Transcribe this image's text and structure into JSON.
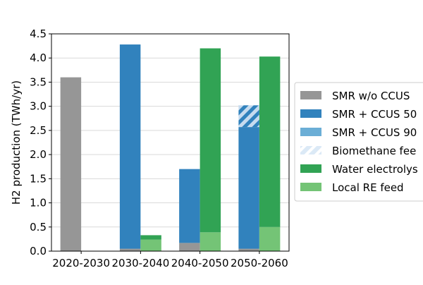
{
  "chart_data": {
    "type": "bar",
    "ylabel": "H2 production (TWh/yr)",
    "ylim": [
      0,
      4.5
    ],
    "yticks": [
      "0.0",
      "0.5",
      "1.0",
      "1.5",
      "2.0",
      "2.5",
      "3.0",
      "3.5",
      "4.0",
      "4.5"
    ],
    "grid": "horizontal",
    "legend_placement": "right (clipped by figure edge)",
    "categories": [
      "2020-2030",
      "2030-2040",
      "2040-2050",
      "2050-2060"
    ],
    "stacks": [
      "SMR-based (left bar)",
      "Electrolysis-based (right bar)"
    ],
    "legend": [
      {
        "label": "SMR w/o CCUS",
        "color": "#969696",
        "pattern": "solid"
      },
      {
        "label": "SMR + CCUS 50",
        "color": "#3182bd",
        "pattern": "solid"
      },
      {
        "label": "SMR + CCUS 90",
        "color": "#6baed6",
        "pattern": "solid"
      },
      {
        "label": "Biomethane fee",
        "color": "#c6dbef",
        "pattern": "hatched"
      },
      {
        "label": "Water electrolys",
        "color": "#31a354",
        "pattern": "solid"
      },
      {
        "label": "Local RE feed",
        "color": "#74c476",
        "pattern": "solid"
      }
    ],
    "series": [
      {
        "key": "smr_wo_ccus",
        "stack": 0,
        "color": "#969696",
        "values": [
          3.6,
          0.05,
          0.17,
          0.05
        ]
      },
      {
        "key": "smr_ccus_50",
        "stack": 0,
        "color": "#3182bd",
        "values": [
          0,
          4.23,
          1.53,
          2.52
        ]
      },
      {
        "key": "smr_ccus_90",
        "stack": 0,
        "color": "#6baed6",
        "values": [
          0,
          0,
          0,
          0
        ]
      },
      {
        "key": "biomethane_feed",
        "stack": 0,
        "color": "#c6dbef",
        "hatch_color": "#3182bd",
        "values": [
          0,
          0,
          0,
          0.45
        ]
      },
      {
        "key": "local_re_feed",
        "stack": 1,
        "color": "#74c476",
        "values": [
          0,
          0.24,
          0.39,
          0.5
        ]
      },
      {
        "key": "water_electrolysis",
        "stack": 1,
        "color": "#31a354",
        "values": [
          0,
          0.09,
          3.81,
          3.53
        ]
      }
    ]
  }
}
